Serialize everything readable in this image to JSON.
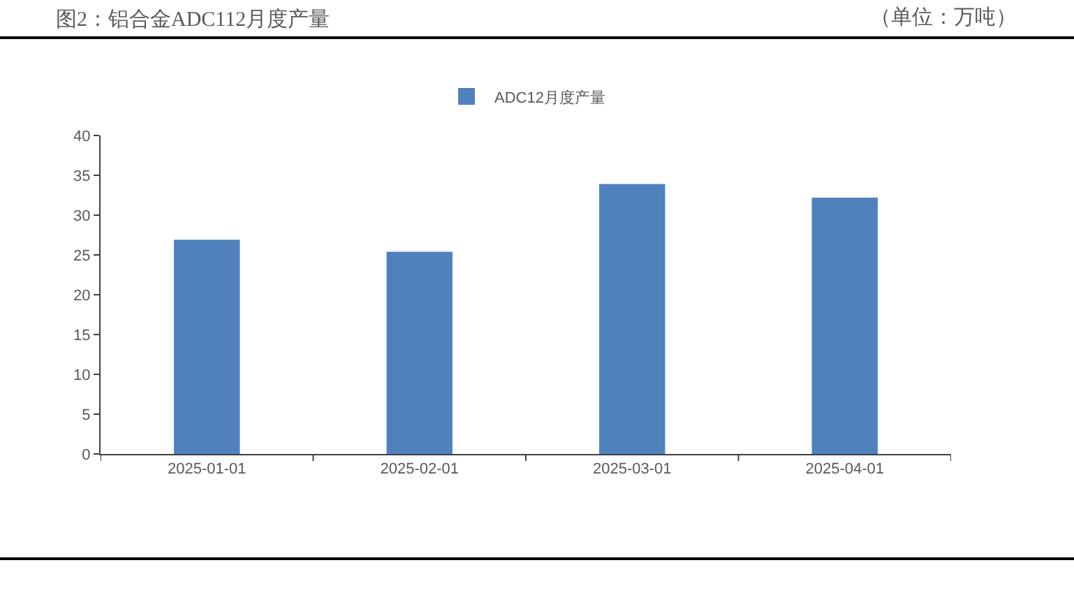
{
  "chart_data": {
    "type": "bar",
    "title": "图2：铝合金ADC112月度产量",
    "subtitle": "（单位：万吨）",
    "categories": [
      "2025-01-01",
      "2025-02-01",
      "2025-03-01",
      "2025-04-01"
    ],
    "series": [
      {
        "name": "ADC12月度产量",
        "color": "#4f81bd",
        "values": [
          26.9,
          25.4,
          33.9,
          32.2
        ]
      }
    ],
    "ylim": [
      0,
      40
    ],
    "yticks": [
      0,
      5,
      10,
      15,
      20,
      25,
      30,
      35,
      40
    ],
    "legend": "top"
  }
}
